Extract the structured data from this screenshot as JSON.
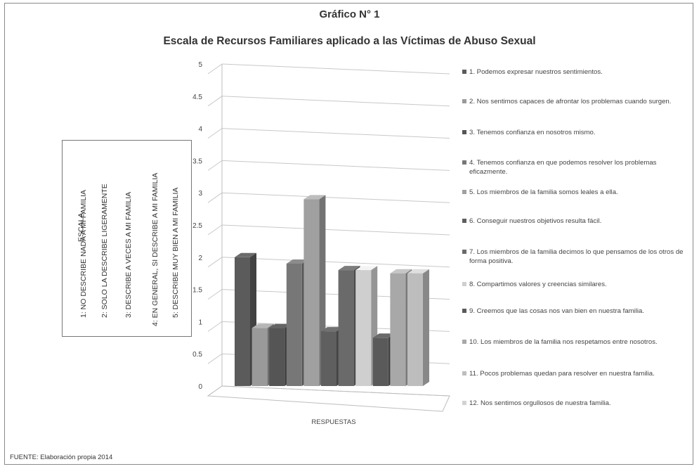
{
  "titles": {
    "line1": "Gráfico N° 1",
    "line2": "Escala de Recursos Familiares aplicado a las Víctimas de Abuso Sexual"
  },
  "scale_box": {
    "heading": "ESCALA",
    "items": [
      "1: NO DESCRIBE NADA A MI FAMILIA",
      "2: SOLO LA DESCRIBE LIGERAMENTE",
      "3: DESCRIBE A VECES A MI FAMILIA",
      "4: EN GENERAL, SI DESCRIBE A MI FAMILIA",
      "5: DESCRIBE MUY BIEN A MI FAMILIA"
    ]
  },
  "source": "FUENTE: Elaboración propia 2014",
  "chart_data": {
    "type": "bar",
    "title": "Escala de Recursos Familiares aplicado a las Víctimas de Abuso Sexual",
    "xlabel": "RESPUESTAS",
    "ylabel": "",
    "ylim": [
      0,
      5
    ],
    "yticks": [
      "0",
      "0.5",
      "1",
      "1.5",
      "2",
      "2.5",
      "3",
      "3.5",
      "4",
      "4.5",
      "5"
    ],
    "grid": true,
    "legend_position": "right",
    "series": [
      {
        "name": "1. Podemos expresar nuestros sentimientos.",
        "value": 2.0,
        "color": "#5b5b5b"
      },
      {
        "name": "2. Nos sentimos capaces de afrontar los problemas cuando surgen.",
        "value": 0.9,
        "color": "#9a9a9a"
      },
      {
        "name": "3. Tenemos confianza en nosotros mismo.",
        "value": 0.9,
        "color": "#555555"
      },
      {
        "name": "4. Tenemos confianza en que podemos resolver los problemas eficazmente.",
        "value": 1.9,
        "color": "#777777"
      },
      {
        "name": "5. Los miembros de la familia somos leales a ella.",
        "value": 2.9,
        "color": "#a0a0a0"
      },
      {
        "name": "6. Conseguir nuestros objetivos resulta fácil.",
        "value": 0.85,
        "color": "#5f5f5f"
      },
      {
        "name": "7. Los miembros de la familia decimos lo que pensamos de los otros de forma positiva.",
        "value": 1.8,
        "color": "#6a6a6a"
      },
      {
        "name": "8. Compartimos valores y creencias similares.",
        "value": 1.8,
        "color": "#cfcfcf"
      },
      {
        "name": "9. Creemos que las cosas nos van bien en nuestra familia.",
        "value": 0.75,
        "color": "#5a5a5a"
      },
      {
        "name": "10. Los miembros de la familia nos respetamos entre nosotros.",
        "value": 1.75,
        "color": "#a8a8a8"
      },
      {
        "name": "11. Pocos problemas quedan para resolver en nuestra familia.",
        "value": 1.75,
        "color": "#bdbdbd"
      },
      {
        "name": "12. Nos sentimos orgullosos de nuestra familia.",
        "value": 0,
        "color": "#d2d2d2"
      }
    ]
  }
}
